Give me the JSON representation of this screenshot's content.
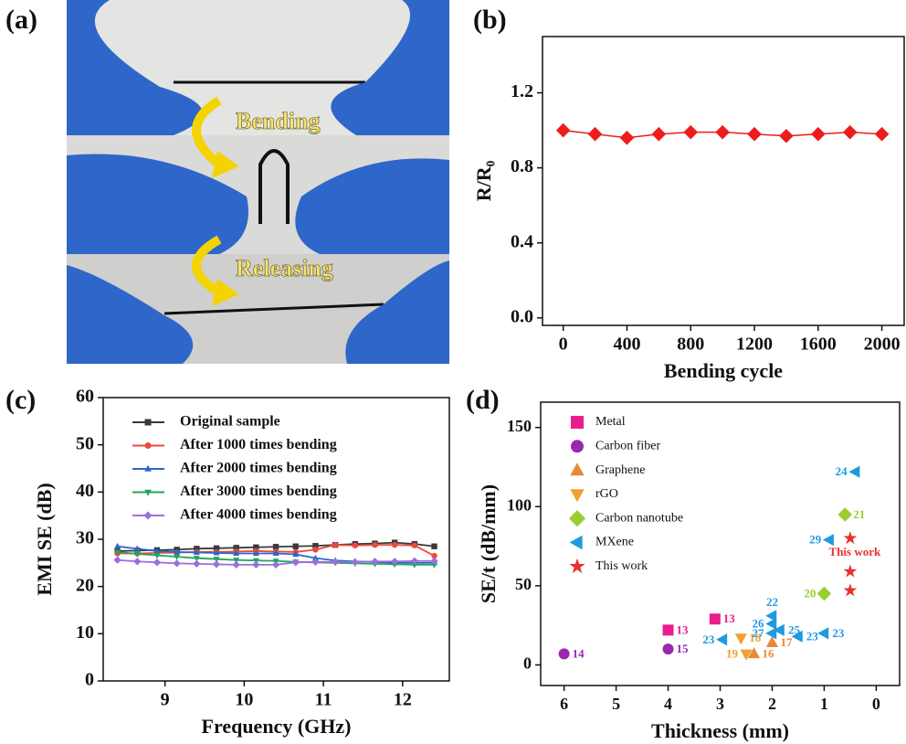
{
  "chart_data": [
    {
      "type": "image",
      "panel": "(a)",
      "annotations": [
        "Bending",
        "Releasing"
      ]
    },
    {
      "type": "line",
      "panel": "(b)",
      "xlabel": "Bending cycle",
      "ylabel": "R/R₀",
      "x": [
        0,
        200,
        400,
        600,
        800,
        1000,
        1200,
        1400,
        1600,
        1800,
        2000
      ],
      "series": [
        {
          "color": "#ee1c1c",
          "marker": "diamond",
          "values": [
            1.0,
            0.98,
            0.96,
            0.98,
            0.99,
            0.99,
            0.98,
            0.97,
            0.98,
            0.99,
            0.98
          ]
        }
      ],
      "xlim": [
        -130,
        2140
      ],
      "xticks": [
        0,
        400,
        800,
        1200,
        1600,
        2000
      ],
      "ylim": [
        -0.04,
        1.5
      ],
      "yticks": [
        {
          "value": 0,
          "label": "0.0"
        },
        0.4,
        0.8,
        1.2
      ]
    },
    {
      "type": "line",
      "panel": "(c)",
      "xlabel": "Frequency (GHz)",
      "ylabel": "EMI SE (dB)",
      "x": [
        8.4,
        8.65,
        8.9,
        9.15,
        9.4,
        9.65,
        9.9,
        10.15,
        10.4,
        10.65,
        10.9,
        11.15,
        11.4,
        11.65,
        11.9,
        12.15,
        12.4
      ],
      "series": [
        {
          "name": "Original sample",
          "color": "#3a3a3a",
          "marker": "square",
          "values": [
            27.5,
            27.6,
            27.7,
            27.8,
            28,
            28.1,
            28.2,
            28.3,
            28.4,
            28.5,
            28.6,
            28.8,
            29,
            29.1,
            29.3,
            29,
            28.5
          ]
        },
        {
          "name": "After 1000 times bending",
          "color": "#ec4a3c",
          "marker": "circle",
          "values": [
            27,
            27,
            27.1,
            27.2,
            27.3,
            27.3,
            27.4,
            27.5,
            27.4,
            27.3,
            27.8,
            28.8,
            28.7,
            28.8,
            28.8,
            28.7,
            26.5
          ]
        },
        {
          "name": "After 2000 times bending",
          "color": "#2e66c8",
          "marker": "triangle-up",
          "values": [
            28.5,
            28,
            27.5,
            27.3,
            27.2,
            27.1,
            27,
            27,
            27,
            26.8,
            26,
            25.5,
            25.3,
            25.2,
            25,
            25,
            25
          ]
        },
        {
          "name": "After 3000 times bending",
          "color": "#22a55a",
          "marker": "triangle-down",
          "values": [
            27.3,
            26.9,
            26.6,
            26.3,
            26,
            25.8,
            25.6,
            25.5,
            25.4,
            25.2,
            25.1,
            25,
            24.9,
            24.8,
            24.7,
            24.6,
            24.6
          ]
        },
        {
          "name": "After 4000 times bending",
          "color": "#9b6ee0",
          "marker": "diamond",
          "values": [
            25.6,
            25.3,
            25.1,
            24.9,
            24.8,
            24.7,
            24.6,
            24.6,
            24.6,
            25.1,
            25.2,
            25.2,
            25.2,
            25.3,
            25.3,
            25.4,
            25.4
          ]
        }
      ],
      "xlim": [
        8.22,
        12.59
      ],
      "xticks": [
        9,
        10,
        11,
        12
      ],
      "ylim": [
        0,
        60
      ],
      "yticks": [
        0,
        10,
        20,
        30,
        40,
        50,
        60
      ]
    },
    {
      "type": "scatter",
      "panel": "(d)",
      "xlabel": "Thickness (mm)",
      "ylabel": "SE/t (dB/mm)",
      "annotation": "This work",
      "series": [
        {
          "name": "Metal",
          "color": "#e91e8c",
          "marker": "square",
          "x": [
            4,
            3.1
          ],
          "values": [
            22,
            29
          ],
          "point_labels": [
            "13",
            "13"
          ]
        },
        {
          "name": "Carbon fiber",
          "color": "#9b27b0",
          "marker": "circle",
          "x": [
            6,
            4
          ],
          "values": [
            7,
            10
          ],
          "point_labels": [
            "14",
            "15"
          ]
        },
        {
          "name": "Graphene",
          "color": "#e8893a",
          "marker": "triangle-up",
          "x": [
            2.35,
            2
          ],
          "values": [
            7,
            14
          ],
          "point_labels": [
            "16",
            "17"
          ]
        },
        {
          "name": "rGO",
          "color": "#f0a030",
          "marker": "triangle-down",
          "x": [
            2.5,
            2.6
          ],
          "values": [
            7,
            17
          ],
          "point_labels": [
            "19",
            "18"
          ]
        },
        {
          "name": "Carbon nanotube",
          "color": "#9acd32",
          "marker": "diamond",
          "x": [
            1,
            0.6
          ],
          "values": [
            45,
            95
          ],
          "point_labels": [
            "20",
            "21"
          ]
        },
        {
          "name": "MXene",
          "color": "#1e9ae0",
          "marker": "triangle-left",
          "x": [
            0.4,
            0.9,
            2,
            2,
            2,
            1.85,
            1.5,
            1,
            2.95
          ],
          "values": [
            122,
            79,
            31,
            26,
            20,
            22,
            18,
            20,
            16
          ],
          "point_labels": [
            "24",
            "29",
            "22",
            "26",
            "27",
            "25",
            "23",
            "23",
            "23"
          ]
        },
        {
          "name": "This work",
          "color": "#e83030",
          "marker": "star",
          "x": [
            0.5,
            0.5,
            0.5
          ],
          "values": [
            80,
            59,
            47
          ]
        }
      ],
      "xlim": [
        6.45,
        -0.45
      ],
      "xticks": [
        0,
        1,
        2,
        3,
        4,
        5,
        6
      ],
      "ylim": [
        -13,
        166
      ],
      "yticks": [
        0,
        50,
        100,
        150
      ]
    }
  ]
}
